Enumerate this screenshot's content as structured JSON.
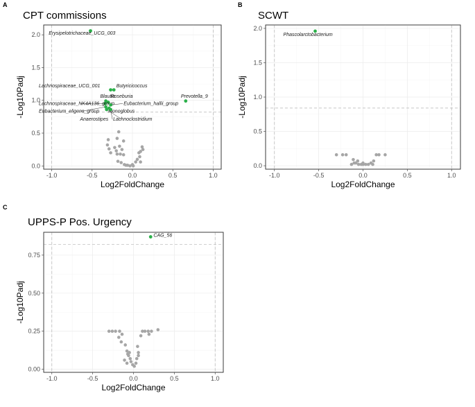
{
  "chart_data": [
    {
      "id": "A",
      "panel_label": "A",
      "type": "scatter",
      "title": "CPT commissions",
      "xlabel": "Log2FoldChange",
      "ylabel": "-Log10Padj",
      "xlim": [
        -1.0,
        1.0
      ],
      "ylim": [
        -0.05,
        2.15
      ],
      "x_ticks": [
        -1.0,
        -0.5,
        0.0,
        0.5,
        1.0
      ],
      "x_tick_labels": [
        "-1.0",
        "-0.5",
        "0.0",
        "0.5",
        "1.0"
      ],
      "y_ticks": [
        0.0,
        0.5,
        1.0,
        1.5,
        2.0
      ],
      "y_tick_labels": [
        "0.0",
        "0.5",
        "1.0",
        "1.5",
        "2.0"
      ],
      "vlines": [
        -1.0,
        1.0
      ],
      "hline": 0.82,
      "colors": {
        "significant": "#2bb04a",
        "nonsignificant": "#a6a6a6"
      },
      "significant_points": [
        {
          "label": "Erysipelotrichaceae_UCG_003",
          "x": -0.52,
          "y": 2.06,
          "lx": -1.02,
          "ly": 2.0
        },
        {
          "label": "Lachnospiraceae_UCG_001",
          "x": -0.27,
          "y": 1.16,
          "lx": -1.16,
          "ly": 1.2
        },
        {
          "label": "Butyricicoccus",
          "x": -0.23,
          "y": 1.16,
          "lx": -0.2,
          "ly": 1.2
        },
        {
          "label": "Prevotella_9",
          "x": 0.66,
          "y": 0.99,
          "lx": 0.6,
          "ly": 1.04
        },
        {
          "label": "Blautia",
          "x": -0.33,
          "y": 0.99,
          "lx": -0.4,
          "ly": 1.04
        },
        {
          "label": "Roseburia",
          "x": -0.3,
          "y": 0.97,
          "lx": -0.27,
          "ly": 1.04
        },
        {
          "label": "Lachnospiraceae_NK4A136_group",
          "x": -0.34,
          "y": 0.95,
          "lx": -1.16,
          "ly": 0.93
        },
        {
          "label": "Eubacterium_hallii_group",
          "x": -0.27,
          "y": 0.93,
          "lx": -0.11,
          "ly": 0.93
        },
        {
          "label": "Eubacterium_eligens_group",
          "x": -0.33,
          "y": 0.9,
          "lx": -1.16,
          "ly": 0.81
        },
        {
          "label": "Monoglobus",
          "x": -0.29,
          "y": 0.88,
          "lx": -0.3,
          "ly": 0.81
        },
        {
          "label": "Anaerostipes",
          "x": -0.32,
          "y": 0.86,
          "lx": -0.65,
          "ly": 0.69
        },
        {
          "label": "Lachnoclostridium",
          "x": -0.27,
          "y": 0.86,
          "lx": -0.24,
          "ly": 0.69
        }
      ],
      "nonsignificant_points": [
        [
          -0.17,
          0.52
        ],
        [
          -0.11,
          0.38
        ],
        [
          -0.3,
          0.4
        ],
        [
          -0.19,
          0.42
        ],
        [
          -0.31,
          0.32
        ],
        [
          -0.16,
          0.3
        ],
        [
          -0.13,
          0.25
        ],
        [
          -0.22,
          0.28
        ],
        [
          -0.29,
          0.26
        ],
        [
          -0.19,
          0.18
        ],
        [
          -0.27,
          0.2
        ],
        [
          -0.15,
          0.18
        ],
        [
          -0.11,
          0.17
        ],
        [
          -0.18,
          0.07
        ],
        [
          -0.14,
          0.05
        ],
        [
          -0.1,
          0.02
        ],
        [
          -0.06,
          0.01
        ],
        [
          -0.03,
          0.0
        ],
        [
          0.0,
          0.02
        ],
        [
          0.04,
          0.06
        ],
        [
          0.06,
          0.1
        ],
        [
          0.09,
          0.14
        ],
        [
          0.1,
          0.22
        ],
        [
          0.12,
          0.29
        ],
        [
          0.13,
          0.25
        ],
        [
          0.08,
          0.2
        ],
        [
          -0.08,
          0.01
        ],
        [
          0.01,
          0.0
        ],
        [
          0.1,
          0.06
        ],
        [
          -0.2,
          0.23
        ]
      ]
    },
    {
      "id": "B",
      "panel_label": "B",
      "type": "scatter",
      "title": "SCWT",
      "xlabel": "Log2FoldChange",
      "ylabel": "-Log10Padj",
      "xlim": [
        -1.0,
        1.0
      ],
      "ylim": [
        -0.05,
        2.05
      ],
      "x_ticks": [
        -1.0,
        -0.5,
        0.0,
        0.5,
        1.0
      ],
      "x_tick_labels": [
        "-1.0",
        "-0.5",
        "0.0",
        "0.5",
        "1.0"
      ],
      "y_ticks": [
        0.0,
        0.5,
        1.0,
        1.5,
        2.0
      ],
      "y_tick_labels": [
        "0.0",
        "0.5",
        "1.0",
        "1.5",
        "2.0"
      ],
      "vlines": [
        -1.0,
        1.0
      ],
      "hline": 0.84,
      "colors": {
        "significant": "#2bb04a",
        "nonsignificant": "#a6a6a6"
      },
      "significant_points": [
        {
          "label": "Phascolarctobacterium",
          "x": -0.54,
          "y": 1.96,
          "lx": -0.9,
          "ly": 1.89
        }
      ],
      "nonsignificant_points": [
        [
          -0.3,
          0.16
        ],
        [
          -0.23,
          0.16
        ],
        [
          -0.19,
          0.16
        ],
        [
          -0.11,
          0.09
        ],
        [
          -0.06,
          0.07
        ],
        [
          -0.1,
          0.04
        ],
        [
          -0.08,
          0.04
        ],
        [
          -0.05,
          0.02
        ],
        [
          -0.02,
          0.02
        ],
        [
          0.0,
          0.02
        ],
        [
          0.03,
          0.02
        ],
        [
          0.06,
          0.02
        ],
        [
          0.09,
          0.04
        ],
        [
          0.12,
          0.07
        ],
        [
          0.15,
          0.16
        ],
        [
          0.18,
          0.16
        ],
        [
          0.25,
          0.16
        ],
        [
          0.11,
          0.02
        ],
        [
          -0.13,
          0.02
        ],
        [
          0.0,
          0.04
        ]
      ]
    },
    {
      "id": "C",
      "panel_label": "C",
      "type": "scatter",
      "title": "UPPS-P Pos. Urgency",
      "xlabel": "Log2FoldChange",
      "ylabel": "-Log10Padj",
      "xlim": [
        -1.0,
        1.0
      ],
      "ylim": [
        -0.02,
        0.9
      ],
      "x_ticks": [
        -1.0,
        -0.5,
        0.0,
        0.5,
        1.0
      ],
      "x_tick_labels": [
        "-1.0",
        "-0.5",
        "0.0",
        "0.5",
        "1.0"
      ],
      "y_ticks": [
        0.0,
        0.25,
        0.5,
        0.75
      ],
      "y_tick_labels": [
        "0.00",
        "0.25",
        "0.50",
        "0.75"
      ],
      "vlines": [
        -1.0,
        1.0
      ],
      "hline": 0.82,
      "colors": {
        "significant": "#2bb04a",
        "nonsignificant": "#a6a6a6"
      },
      "significant_points": [
        {
          "label": "CAG_56",
          "x": 0.21,
          "y": 0.87,
          "lx": 0.22,
          "ly": 0.87
        }
      ],
      "nonsignificant_points": [
        [
          -0.3,
          0.25
        ],
        [
          -0.26,
          0.25
        ],
        [
          -0.22,
          0.25
        ],
        [
          -0.17,
          0.25
        ],
        [
          -0.14,
          0.23
        ],
        [
          -0.18,
          0.21
        ],
        [
          -0.15,
          0.18
        ],
        [
          -0.1,
          0.16
        ],
        [
          -0.08,
          0.12
        ],
        [
          -0.07,
          0.1
        ],
        [
          -0.06,
          0.09
        ],
        [
          -0.04,
          0.07
        ],
        [
          -0.03,
          0.05
        ],
        [
          -0.01,
          0.03
        ],
        [
          0.01,
          0.02
        ],
        [
          0.03,
          0.04
        ],
        [
          0.04,
          0.07
        ],
        [
          0.06,
          0.09
        ],
        [
          0.06,
          0.11
        ],
        [
          0.05,
          0.15
        ],
        [
          0.09,
          0.22
        ],
        [
          0.11,
          0.25
        ],
        [
          0.14,
          0.25
        ],
        [
          0.18,
          0.25
        ],
        [
          0.22,
          0.25
        ],
        [
          0.3,
          0.26
        ],
        [
          0.19,
          0.23
        ],
        [
          -0.08,
          0.04
        ],
        [
          -0.11,
          0.06
        ],
        [
          -0.05,
          0.11
        ]
      ]
    }
  ]
}
